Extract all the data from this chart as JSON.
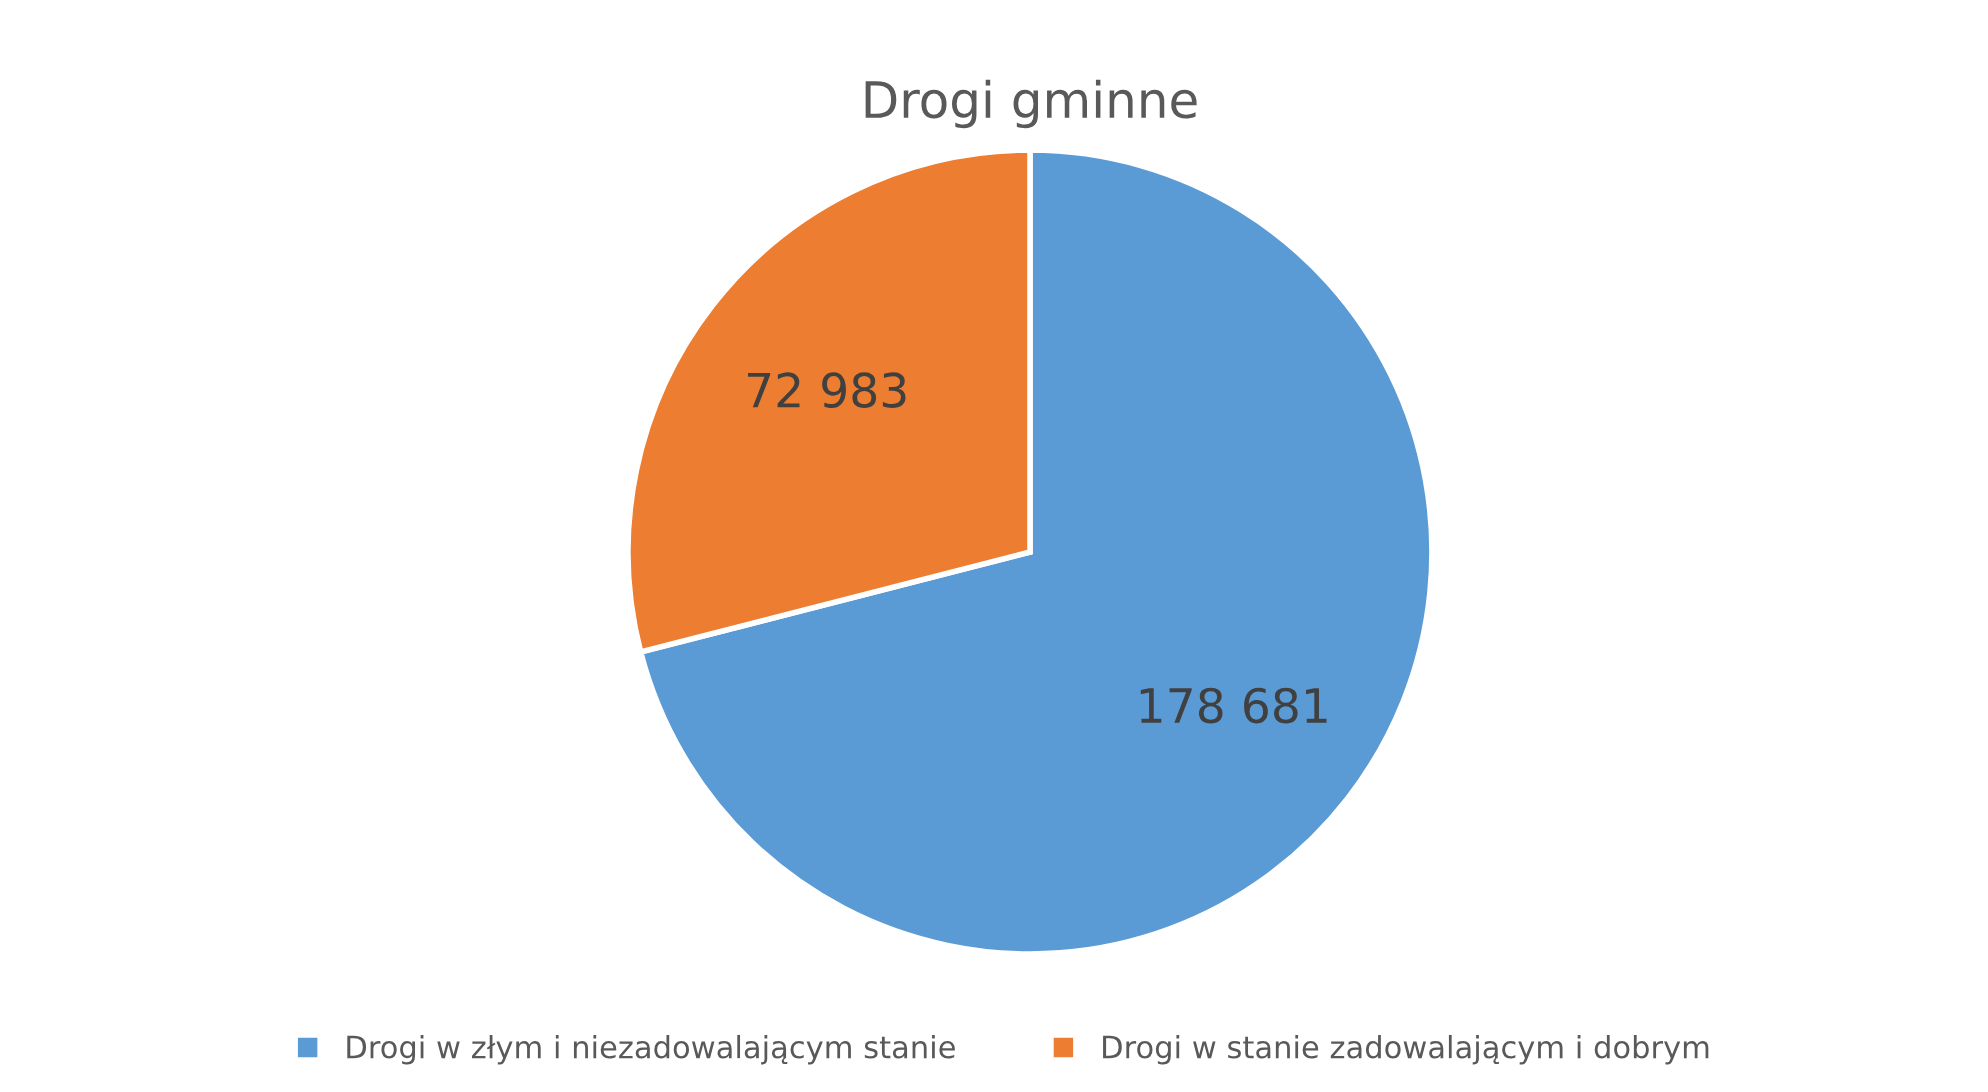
{
  "chart_data": {
    "type": "pie",
    "title": "Drogi gminne",
    "categories": [
      "Drogi w złym i niezadowalającym stanie",
      "Drogi w stanie zadowalającym i dobrym"
    ],
    "values": [
      178681,
      72983
    ],
    "value_labels": [
      "178 681",
      "72 983"
    ],
    "colors": [
      "#5b9bd5",
      "#ed7d31"
    ],
    "legend": "bottom"
  }
}
